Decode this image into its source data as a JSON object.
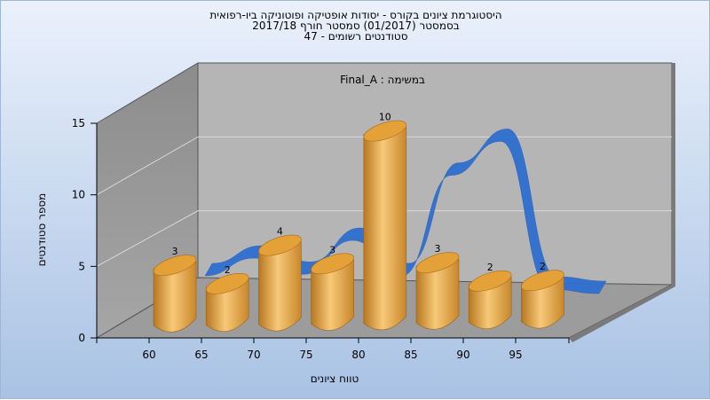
{
  "chart_data": {
    "type": "bar",
    "title": [
      "היסטוגרמת ציונים בקורס - יסודות אופטיקה ופוטוניקה ביו-רפואית",
      "בסמסטר  (01/2017)  סמסטר חורף 2017/18",
      "סטודנטים רשומים - 47"
    ],
    "annotation": "במשימה : Final_A",
    "xlabel": "טווח ציונים",
    "ylabel": "מספר סטודנטים",
    "x_ticks": [
      "60",
      "65",
      "70",
      "75",
      "80",
      "85",
      "90",
      "95"
    ],
    "y_ticks": [
      0,
      5,
      10,
      15
    ],
    "ylim": [
      0,
      15
    ],
    "bars": [
      {
        "label": "3",
        "value": 3
      },
      {
        "label": "2",
        "value": 2
      },
      {
        "label": "4",
        "value": 4
      },
      {
        "label": "3",
        "value": 3
      },
      {
        "label": "10",
        "value": 10
      },
      {
        "label": "3",
        "value": 3
      },
      {
        "label": "2",
        "value": 2
      },
      {
        "label": "2",
        "value": 2
      }
    ],
    "curve": [
      1.2,
      2.4,
      1.3,
      3.6,
      1.2,
      8.0,
      10.3,
      0.3,
      0.0
    ],
    "colors": {
      "bar": "#e8a43c",
      "curve": "#2f6fd0",
      "background": "#b5b5b5"
    }
  }
}
